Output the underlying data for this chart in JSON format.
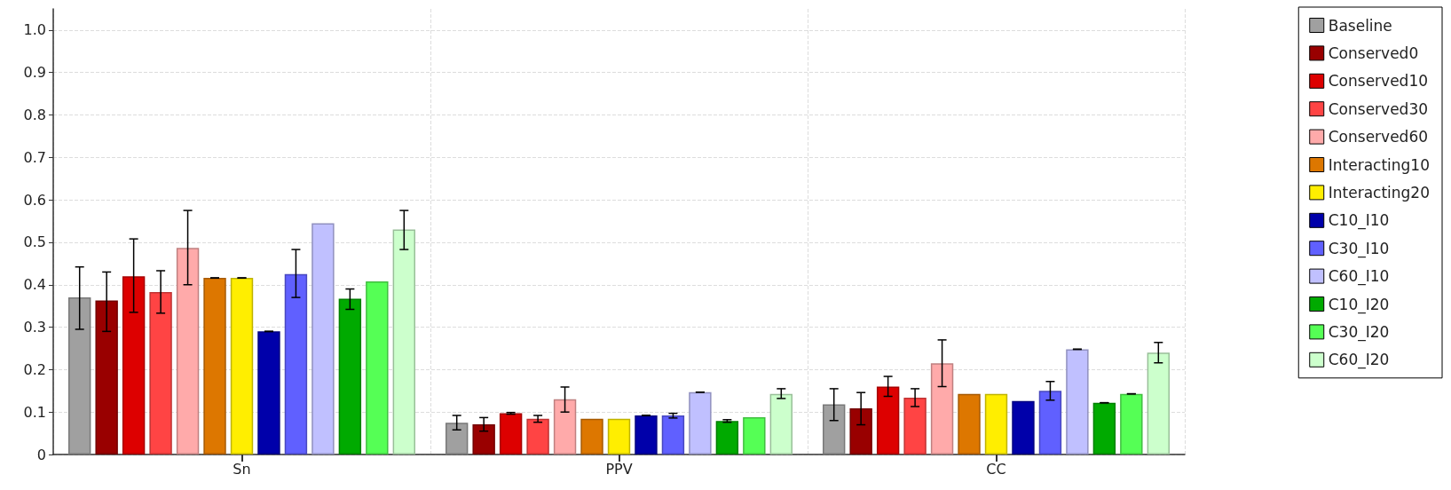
{
  "chart_data": {
    "type": "bar",
    "categories": [
      "Sn",
      "PPV",
      "CC"
    ],
    "series": [
      {
        "name": "Baseline",
        "color": "#a0a0a0",
        "values": [
          0.37,
          0.075,
          0.118
        ],
        "errors": [
          [
            0.295,
            0.442
          ],
          [
            0.058,
            0.092
          ],
          [
            0.08,
            0.155
          ]
        ]
      },
      {
        "name": "Conserved0",
        "color": "#990000",
        "values": [
          0.363,
          0.071,
          0.109
        ],
        "errors": [
          [
            0.29,
            0.43
          ],
          [
            0.055,
            0.087
          ],
          [
            0.07,
            0.146
          ]
        ]
      },
      {
        "name": "Conserved10",
        "color": "#dd0000",
        "values": [
          0.42,
          0.097,
          0.16
        ],
        "errors": [
          [
            0.335,
            0.508
          ],
          [
            0.095,
            0.099
          ],
          [
            0.137,
            0.184
          ]
        ]
      },
      {
        "name": "Conserved30",
        "color": "#ff4444",
        "values": [
          0.383,
          0.084,
          0.134
        ],
        "errors": [
          [
            0.333,
            0.433
          ],
          [
            0.076,
            0.092
          ],
          [
            0.113,
            0.155
          ]
        ]
      },
      {
        "name": "Conserved60",
        "color": "#ffaaaa",
        "values": [
          0.487,
          0.13,
          0.215
        ],
        "errors": [
          [
            0.4,
            0.575
          ],
          [
            0.1,
            0.159
          ],
          [
            0.16,
            0.27
          ]
        ]
      },
      {
        "name": "Interacting10",
        "color": "#dd7700",
        "values": [
          0.416,
          0.084,
          0.143
        ],
        "errors": [
          0,
          null,
          null
        ]
      },
      {
        "name": "Interacting20",
        "color": "#ffee00",
        "values": [
          0.416,
          0.084,
          0.143
        ],
        "errors": [
          0,
          null,
          null
        ]
      },
      {
        "name": "C10_I10",
        "color": "#0000aa",
        "values": [
          0.29,
          0.092,
          0.126
        ],
        "errors": [
          0,
          0,
          null
        ]
      },
      {
        "name": "C30_I10",
        "color": "#6060ff",
        "values": [
          0.425,
          0.092,
          0.15
        ],
        "errors": [
          [
            0.37,
            0.483
          ],
          [
            0.086,
            0.097
          ],
          [
            0.128,
            0.172
          ]
        ]
      },
      {
        "name": "C60_I10",
        "color": "#c0c0ff",
        "values": [
          0.545,
          0.147,
          0.248
        ],
        "errors": [
          null,
          0,
          0
        ]
      },
      {
        "name": "C10_I20",
        "color": "#00aa00",
        "values": [
          0.367,
          0.079,
          0.122
        ],
        "errors": [
          [
            0.342,
            0.39
          ],
          [
            0.076,
            0.082
          ],
          0
        ]
      },
      {
        "name": "C30_I20",
        "color": "#55ff55",
        "values": [
          0.408,
          0.088,
          0.143
        ],
        "errors": [
          null,
          null,
          0
        ]
      },
      {
        "name": "C60_I20",
        "color": "#ccffcc",
        "values": [
          0.53,
          0.143,
          0.24
        ],
        "errors": [
          [
            0.483,
            0.575
          ],
          [
            0.132,
            0.155
          ],
          [
            0.216,
            0.264
          ]
        ]
      }
    ],
    "ylim": [
      0,
      1.05
    ],
    "yticks": [
      0,
      0.1,
      0.2,
      0.3,
      0.4,
      0.5,
      0.6,
      0.7,
      0.8,
      0.9,
      {
        "value": 1,
        "label": "1.0"
      }
    ],
    "grid": true,
    "legend": "right"
  }
}
